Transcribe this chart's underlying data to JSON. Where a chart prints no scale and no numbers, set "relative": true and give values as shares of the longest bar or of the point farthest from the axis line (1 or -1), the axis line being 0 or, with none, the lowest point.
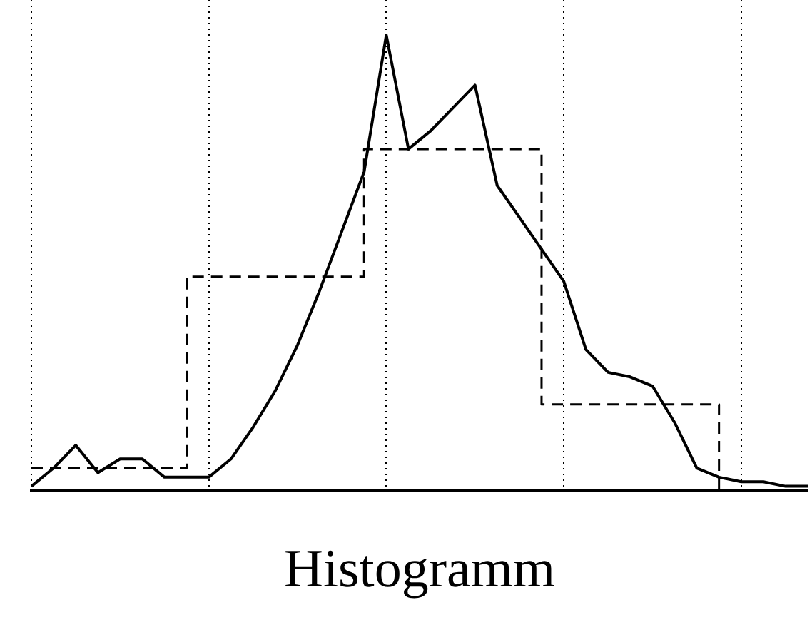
{
  "chart_data": {
    "type": "line",
    "relative": true,
    "xlabel": "Histogramm",
    "categories": [
      null,
      null,
      null,
      null,
      null,
      null,
      null,
      null,
      null,
      null,
      null,
      null,
      null,
      null,
      null,
      null,
      null,
      null,
      null,
      null,
      null,
      null,
      null,
      null,
      null,
      null,
      null,
      null,
      null,
      null,
      null,
      null,
      null,
      null,
      null,
      null
    ],
    "grid": "x",
    "legend": false,
    "series": [
      {
        "color": "#000000",
        "line_style": "solid",
        "values": [
          0.01,
          0.05,
          0.1,
          0.04,
          0.07,
          0.07,
          0.03,
          0.03,
          0.03,
          0.07,
          0.14,
          0.22,
          0.32,
          0.44,
          0.57,
          0.7,
          1.0,
          0.75,
          0.79,
          0.84,
          0.89,
          0.67,
          0.6,
          0.53,
          0.46,
          0.31,
          0.26,
          0.25,
          0.23,
          0.15,
          0.05,
          0.03,
          0.02,
          0.02,
          0.01,
          0.01
        ]
      },
      {
        "type": "step",
        "color": "#000000",
        "line_style": "dashed",
        "values": [
          0.05,
          0.05,
          0.05,
          0.05,
          0.05,
          0.05,
          0.05,
          0.05,
          0.47,
          0.47,
          0.47,
          0.47,
          0.47,
          0.47,
          0.47,
          0.47,
          0.75,
          0.75,
          0.75,
          0.75,
          0.75,
          0.75,
          0.75,
          0.75,
          0.19,
          0.19,
          0.19,
          0.19,
          0.19,
          0.19,
          0.19,
          0.19,
          0,
          null,
          null,
          null
        ]
      }
    ]
  }
}
